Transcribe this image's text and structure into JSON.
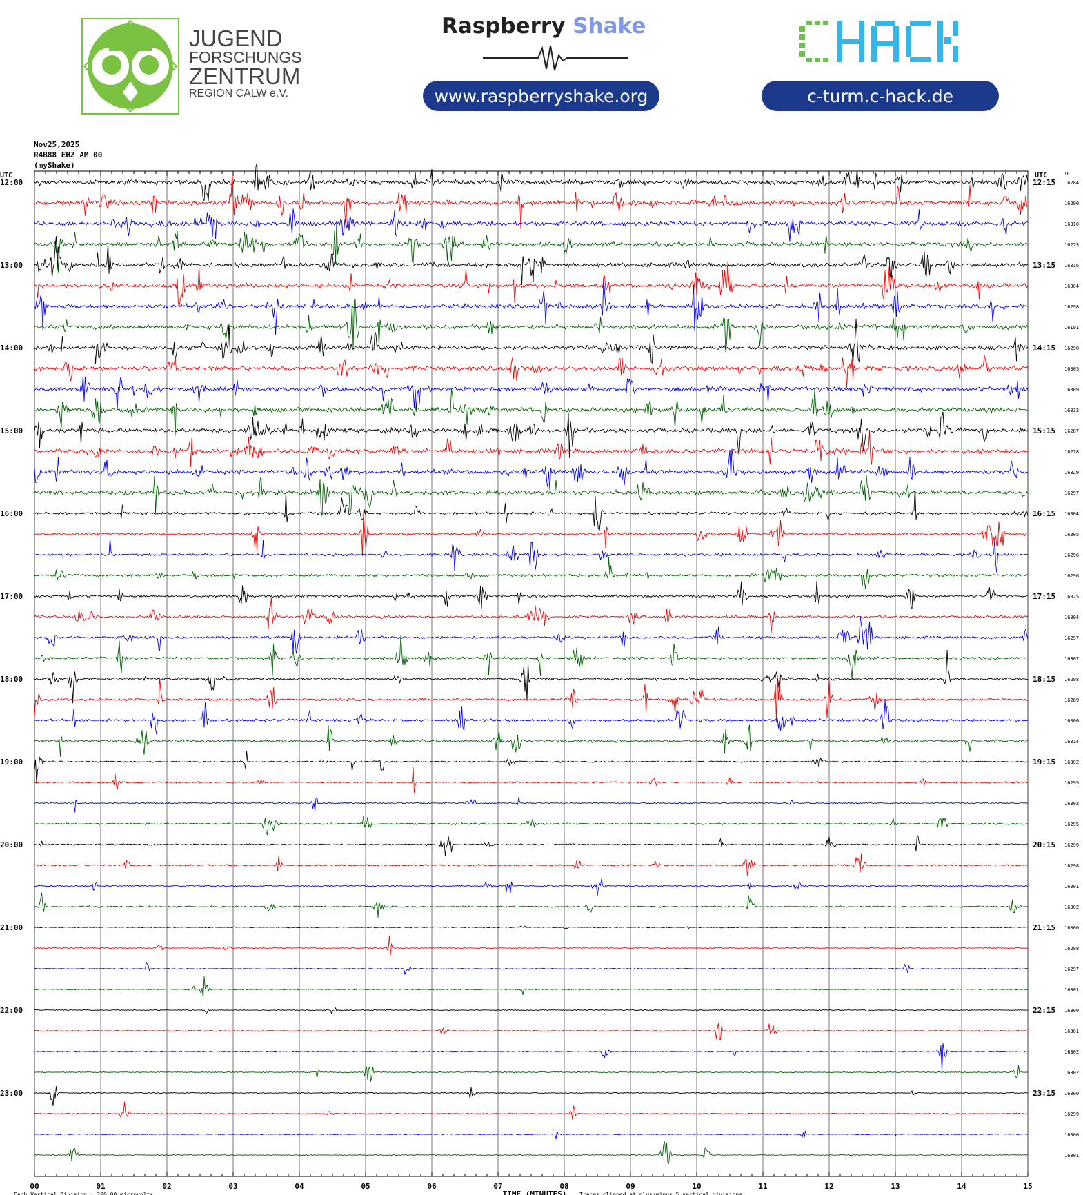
{
  "header": {
    "jfz_logo": {
      "line1": "JUGEND",
      "line2": "FORSCHUNGS",
      "line3": "ZENTRUM",
      "line4": "REGION CALW e.V.",
      "green": "#7cc242"
    },
    "raspberry_shake": {
      "word1": "Raspberry",
      "word2": "Shake",
      "url": "www.raspberryshake.org",
      "accent": "#7f99e8"
    },
    "chack": {
      "logo": "CHACK",
      "url": "c-turm.c-hack.de",
      "green": "#6cc24a",
      "blue": "#35b6e8"
    },
    "pill_color": "#1c3a8c"
  },
  "station": {
    "date": "Nov25,2025",
    "channel": "R4B88 EHZ AM 00",
    "source": "(myShake)"
  },
  "chart_data": {
    "type": "line",
    "title": "",
    "xlabel": "TIME (MINUTES)",
    "x_ticks": [
      "00",
      "01",
      "02",
      "03",
      "04",
      "05",
      "06",
      "07",
      "08",
      "09",
      "10",
      "11",
      "12",
      "13",
      "14",
      "15"
    ],
    "xlim": [
      0,
      15
    ],
    "left_axis_label": "UTC",
    "right_axis_label": "UTC",
    "dc_label": "DC",
    "colors": [
      "#000000",
      "#ff0000",
      "#0000ff",
      "#006400"
    ],
    "grid": true,
    "footer_left": "Each Vertical Division =  200.00 microvolts",
    "footer_right": "Traces clipped at plus/minus 5 vertical divisions",
    "rows": [
      {
        "left": "12:00",
        "right": "12:15",
        "dc": "16284"
      },
      {
        "left": "",
        "right": "",
        "dc": "16290"
      },
      {
        "left": "",
        "right": "",
        "dc": "16310"
      },
      {
        "left": "",
        "right": "",
        "dc": "16273"
      },
      {
        "left": "13:00",
        "right": "13:15",
        "dc": "16316"
      },
      {
        "left": "",
        "right": "",
        "dc": "16304"
      },
      {
        "left": "",
        "right": "",
        "dc": "16298"
      },
      {
        "left": "",
        "right": "",
        "dc": "16191"
      },
      {
        "left": "14:00",
        "right": "14:15",
        "dc": "16290"
      },
      {
        "left": "",
        "right": "",
        "dc": "16305"
      },
      {
        "left": "",
        "right": "",
        "dc": "16309"
      },
      {
        "left": "",
        "right": "",
        "dc": "16332"
      },
      {
        "left": "15:00",
        "right": "15:15",
        "dc": "16287"
      },
      {
        "left": "",
        "right": "",
        "dc": "16278"
      },
      {
        "left": "",
        "right": "",
        "dc": "16329"
      },
      {
        "left": "",
        "right": "",
        "dc": "16297"
      },
      {
        "left": "16:00",
        "right": "16:15",
        "dc": "16304"
      },
      {
        "left": "",
        "right": "",
        "dc": "16305"
      },
      {
        "left": "",
        "right": "",
        "dc": "16296"
      },
      {
        "left": "",
        "right": "",
        "dc": "16296"
      },
      {
        "left": "17:00",
        "right": "17:15",
        "dc": "16325"
      },
      {
        "left": "",
        "right": "",
        "dc": "16304"
      },
      {
        "left": "",
        "right": "",
        "dc": "16297"
      },
      {
        "left": "",
        "right": "",
        "dc": "16307"
      },
      {
        "left": "18:00",
        "right": "18:15",
        "dc": "16298"
      },
      {
        "left": "",
        "right": "",
        "dc": "16289"
      },
      {
        "left": "",
        "right": "",
        "dc": "16300"
      },
      {
        "left": "",
        "right": "",
        "dc": "16314"
      },
      {
        "left": "19:00",
        "right": "19:15",
        "dc": "16302"
      },
      {
        "left": "",
        "right": "",
        "dc": "16295"
      },
      {
        "left": "",
        "right": "",
        "dc": "16302"
      },
      {
        "left": "",
        "right": "",
        "dc": "16295"
      },
      {
        "left": "20:00",
        "right": "20:15",
        "dc": "16299"
      },
      {
        "left": "",
        "right": "",
        "dc": "16298"
      },
      {
        "left": "",
        "right": "",
        "dc": "16301"
      },
      {
        "left": "",
        "right": "",
        "dc": "16302"
      },
      {
        "left": "21:00",
        "right": "21:15",
        "dc": "16300"
      },
      {
        "left": "",
        "right": "",
        "dc": "16298"
      },
      {
        "left": "",
        "right": "",
        "dc": "16297"
      },
      {
        "left": "",
        "right": "",
        "dc": "16301"
      },
      {
        "left": "22:00",
        "right": "22:15",
        "dc": "16300"
      },
      {
        "left": "",
        "right": "",
        "dc": "16301"
      },
      {
        "left": "",
        "right": "",
        "dc": "16302"
      },
      {
        "left": "",
        "right": "",
        "dc": "16302"
      },
      {
        "left": "23:00",
        "right": "23:15",
        "dc": "16300"
      },
      {
        "left": "",
        "right": "",
        "dc": "16299"
      },
      {
        "left": "",
        "right": "",
        "dc": "16300"
      },
      {
        "left": "",
        "right": "",
        "dc": "16301"
      }
    ]
  }
}
